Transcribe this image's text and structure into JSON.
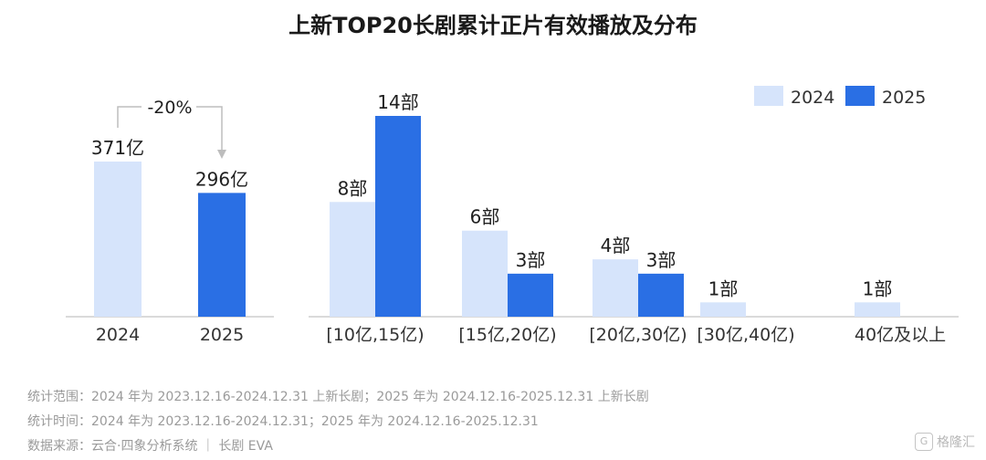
{
  "title": "上新TOP20长剧累计正片有效播放及分布",
  "colors": {
    "y2024": "#d6e4fb",
    "y2025": "#2a6fe4",
    "axis": "#b5b5b5",
    "arrow": "#bdbdbd"
  },
  "legend": [
    "2024",
    "2025"
  ],
  "chart_data": [
    {
      "type": "bar",
      "categories": [
        "2024",
        "2025"
      ],
      "values": [
        371,
        296
      ],
      "data_labels": [
        "371亿",
        "296亿"
      ],
      "annotation": "-20%",
      "ylim": [
        0,
        400
      ]
    },
    {
      "type": "bar",
      "categories": [
        "[10亿,15亿)",
        "[15亿,20亿)",
        "[20亿,30亿)",
        "[30亿,40亿)",
        "40亿及以上"
      ],
      "series": [
        {
          "name": "2024",
          "values": [
            8,
            6,
            4,
            1,
            1
          ],
          "labels": [
            "8部",
            "6部",
            "4部",
            "1部",
            "1部"
          ]
        },
        {
          "name": "2025",
          "values": [
            14,
            3,
            3,
            0,
            0
          ],
          "labels": [
            "14部",
            "3部",
            "3部",
            "",
            ""
          ]
        }
      ],
      "ylim": [
        0,
        15
      ],
      "legend_position": "top-right"
    }
  ],
  "footnotes": [
    "统计范围：2024 年为 2023.12.16-2024.12.31 上新长剧；2025 年为 2024.12.16-2025.12.31 上新长剧",
    "统计时间：2024 年为 2023.12.16-2024.12.31；2025 年为 2024.12.16-2025.12.31",
    "数据来源：云合·四象分析系统 ｜ 长剧 EVA"
  ],
  "watermark": {
    "text": "格隆汇",
    "icon": "G"
  }
}
